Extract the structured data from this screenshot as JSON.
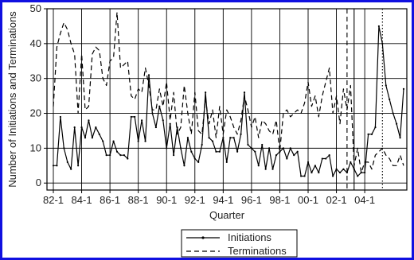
{
  "chart_data": {
    "type": "line",
    "xlabel": "Quarter",
    "ylabel": "Number of Initiations and Terminations",
    "x_tick_labels": [
      "82-1",
      "84-1",
      "86-1",
      "88-1",
      "90-1",
      "92-1",
      "94-1",
      "96-1",
      "98-1",
      "00-1",
      "02-1",
      "04-1"
    ],
    "x_tick_index": [
      0,
      8,
      16,
      24,
      32,
      40,
      48,
      56,
      64,
      72,
      80,
      88
    ],
    "ylim": [
      -2,
      50
    ],
    "yticks": [
      0,
      10,
      20,
      30,
      40,
      50
    ],
    "grid": true,
    "legend_position": "bottom-center",
    "colors": {
      "frame": "#1010e0",
      "series": "#000000",
      "vline": "#000000"
    },
    "vertical_markers": [
      {
        "style": "dashed",
        "at_index": 83
      },
      {
        "style": "solid",
        "at_index": 85
      },
      {
        "style": "dotted",
        "at_index": 93
      }
    ],
    "series": [
      {
        "name": "Initiations",
        "style": "solid-with-markers",
        "values": [
          5,
          5,
          19,
          10,
          6,
          4,
          16,
          5,
          16,
          13,
          18,
          13,
          16,
          14,
          12,
          8,
          8,
          12,
          9,
          8,
          8,
          7,
          19,
          19,
          12,
          18,
          12,
          31,
          20,
          16,
          22,
          18,
          10,
          17,
          8,
          16,
          10,
          5,
          13,
          9,
          7,
          6,
          11,
          26,
          13,
          12,
          9,
          9,
          13,
          6,
          13,
          13,
          9,
          14,
          26,
          11,
          10,
          9,
          5,
          11,
          4,
          10,
          4,
          8,
          9,
          10,
          7,
          10,
          8,
          9,
          2,
          2,
          6,
          3,
          5,
          3,
          7,
          7,
          8,
          2,
          4,
          3,
          4,
          3,
          6,
          4,
          2,
          3,
          3,
          14,
          14,
          16,
          45,
          40,
          28,
          24,
          20,
          17,
          13,
          27
        ]
      },
      {
        "name": "Terminations",
        "style": "dashed",
        "values": [
          22,
          39,
          43,
          46,
          44,
          40,
          37,
          20,
          37,
          21,
          22,
          37,
          39,
          38,
          30,
          28,
          35,
          36,
          49,
          33,
          34,
          35,
          25,
          24,
          27,
          26,
          33,
          28,
          21,
          21,
          27,
          22,
          29,
          18,
          26,
          14,
          16,
          28,
          20,
          14,
          26,
          15,
          14,
          24,
          17,
          21,
          13,
          22,
          14,
          21,
          19,
          16,
          14,
          18,
          25,
          21,
          16,
          19,
          13,
          18,
          17,
          15,
          14,
          18,
          9,
          20,
          21,
          19,
          20,
          21,
          20,
          23,
          29,
          22,
          25,
          19,
          25,
          29,
          33,
          20,
          25,
          17,
          27,
          21,
          28,
          5,
          10,
          3,
          6,
          6,
          4,
          8,
          9,
          10,
          8,
          7,
          5,
          5,
          8,
          5
        ]
      }
    ]
  }
}
